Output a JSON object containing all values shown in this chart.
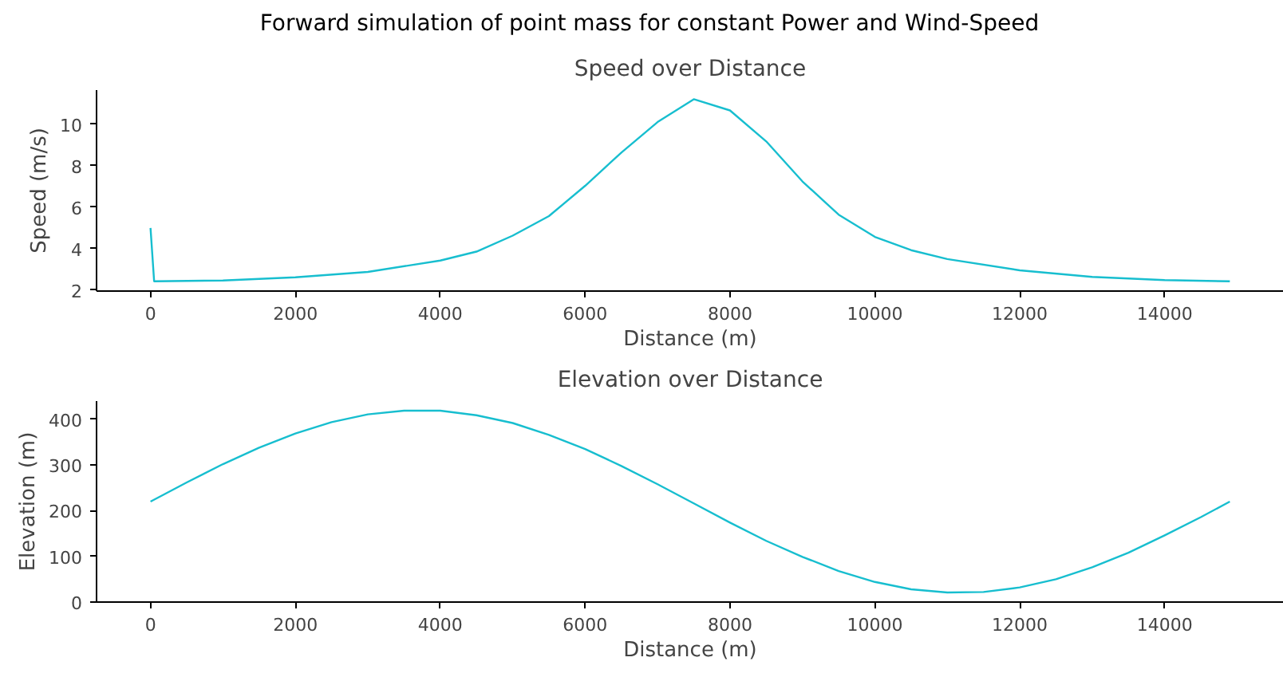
{
  "chart_data": [
    {
      "type": "line",
      "title": "Speed over Distance",
      "xlabel": "Distance (m)",
      "ylabel": "Speed (m/s)",
      "xlim": [
        -745,
        15645
      ],
      "ylim": [
        1.96,
        11.64
      ],
      "xticks": [
        0,
        2000,
        4000,
        6000,
        8000,
        10000,
        12000,
        14000
      ],
      "yticks": [
        2,
        4,
        6,
        8,
        10
      ],
      "series": [
        {
          "color": "#17becf",
          "x": [
            0,
            50,
            1000,
            2000,
            3000,
            4000,
            4500,
            5000,
            5500,
            6000,
            6500,
            7000,
            7500,
            8000,
            8500,
            9000,
            9500,
            10000,
            10500,
            11000,
            12000,
            13000,
            14000,
            14900
          ],
          "values": [
            5.0,
            2.43,
            2.47,
            2.62,
            2.88,
            3.43,
            3.86,
            4.63,
            5.57,
            7.03,
            8.63,
            10.1,
            11.2,
            10.66,
            9.17,
            7.24,
            5.64,
            4.57,
            3.93,
            3.5,
            2.96,
            2.64,
            2.49,
            2.43
          ]
        }
      ]
    },
    {
      "type": "line",
      "title": "Elevation over Distance",
      "xlabel": "Distance (m)",
      "ylabel": "Elevation (m)",
      "xlim": [
        -745,
        15645
      ],
      "ylim": [
        0,
        440
      ],
      "xticks": [
        0,
        2000,
        4000,
        6000,
        8000,
        10000,
        12000,
        14000
      ],
      "yticks": [
        0,
        100,
        200,
        300,
        400
      ],
      "series": [
        {
          "color": "#17becf",
          "x": [
            0,
            500,
            1000,
            1500,
            2000,
            2500,
            3000,
            3500,
            4000,
            4500,
            5000,
            5500,
            6000,
            6500,
            7000,
            7500,
            8000,
            8500,
            9000,
            9500,
            10000,
            10500,
            11000,
            11500,
            12000,
            12500,
            13000,
            13500,
            14000,
            14500,
            14900
          ],
          "values": [
            220,
            262,
            302,
            338,
            369,
            394,
            411,
            419,
            419,
            409,
            392,
            366,
            335,
            298,
            258,
            216,
            174,
            134,
            99,
            68,
            44,
            28,
            21,
            22,
            32,
            50,
            76,
            108,
            146,
            186,
            220
          ]
        }
      ]
    },
    {
      "type": "other",
      "title": "Forward simulation of point mass for constant Power and Wind-Speed"
    }
  ]
}
